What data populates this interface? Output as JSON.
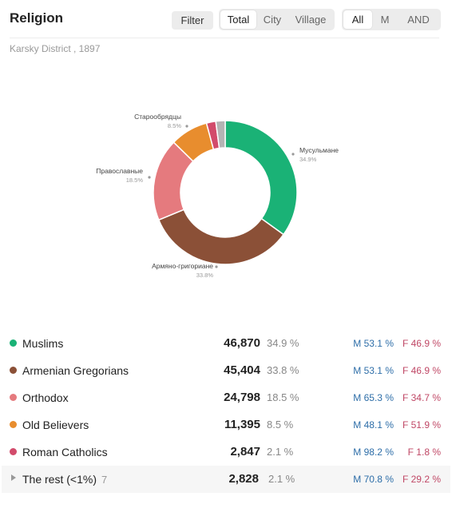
{
  "header": {
    "title": "Religion",
    "filter_label": "Filter",
    "area_options": [
      "Total",
      "City",
      "Village"
    ],
    "area_active": "Total",
    "sex_options": [
      "All",
      "M",
      "AND"
    ],
    "sex_active": "All"
  },
  "subtitle": "Karsky District , 1897",
  "chart_data": {
    "type": "pie",
    "donut": true,
    "slices": [
      {
        "label": "Мусульмане",
        "pct_text": "34.9%",
        "value": 34.9,
        "color": "#1ab276"
      },
      {
        "label": "Армяно-григориане",
        "pct_text": "33.8%",
        "value": 33.8,
        "color": "#8b5037"
      },
      {
        "label": "Православные",
        "pct_text": "18.5%",
        "value": 18.5,
        "color": "#e57a7e"
      },
      {
        "label": "Старообрядцы",
        "pct_text": "8.5%",
        "value": 8.5,
        "color": "#e88d2e"
      },
      {
        "label": "",
        "pct_text": "",
        "value": 2.1,
        "color": "#d24b6b"
      },
      {
        "label": "",
        "pct_text": "",
        "value": 2.1,
        "color": "#b4b4b4"
      }
    ]
  },
  "legend": [
    {
      "name": "Muslims",
      "value": "46,870",
      "pct": "34.9 %",
      "m": "M 53.1 %",
      "f": "F 46.9 %",
      "color": "#1ab276"
    },
    {
      "name": "Armenian Gregorians",
      "value": "45,404",
      "pct": "33.8 %",
      "m": "M 53.1 %",
      "f": "F 46.9 %",
      "color": "#8b5037"
    },
    {
      "name": "Orthodox",
      "value": "24,798",
      "pct": "18.5 %",
      "m": "M 65.3 %",
      "f": "F 34.7 %",
      "color": "#e57a7e"
    },
    {
      "name": "Old Believers",
      "value": "11,395",
      "pct": "8.5 %",
      "m": "M 48.1 %",
      "f": "F 51.9 %",
      "color": "#e88d2e"
    },
    {
      "name": "Roman Catholics",
      "value": "2,847",
      "pct": "2.1 %",
      "m": "M 98.2 %",
      "f": "F 1.8 %",
      "color": "#d24b6b"
    }
  ],
  "rest": {
    "name": "The rest (<1%)",
    "count": "7",
    "value": "2,828",
    "pct": "2.1 %",
    "m": "M 70.8 %",
    "f": "F 29.2 %"
  }
}
